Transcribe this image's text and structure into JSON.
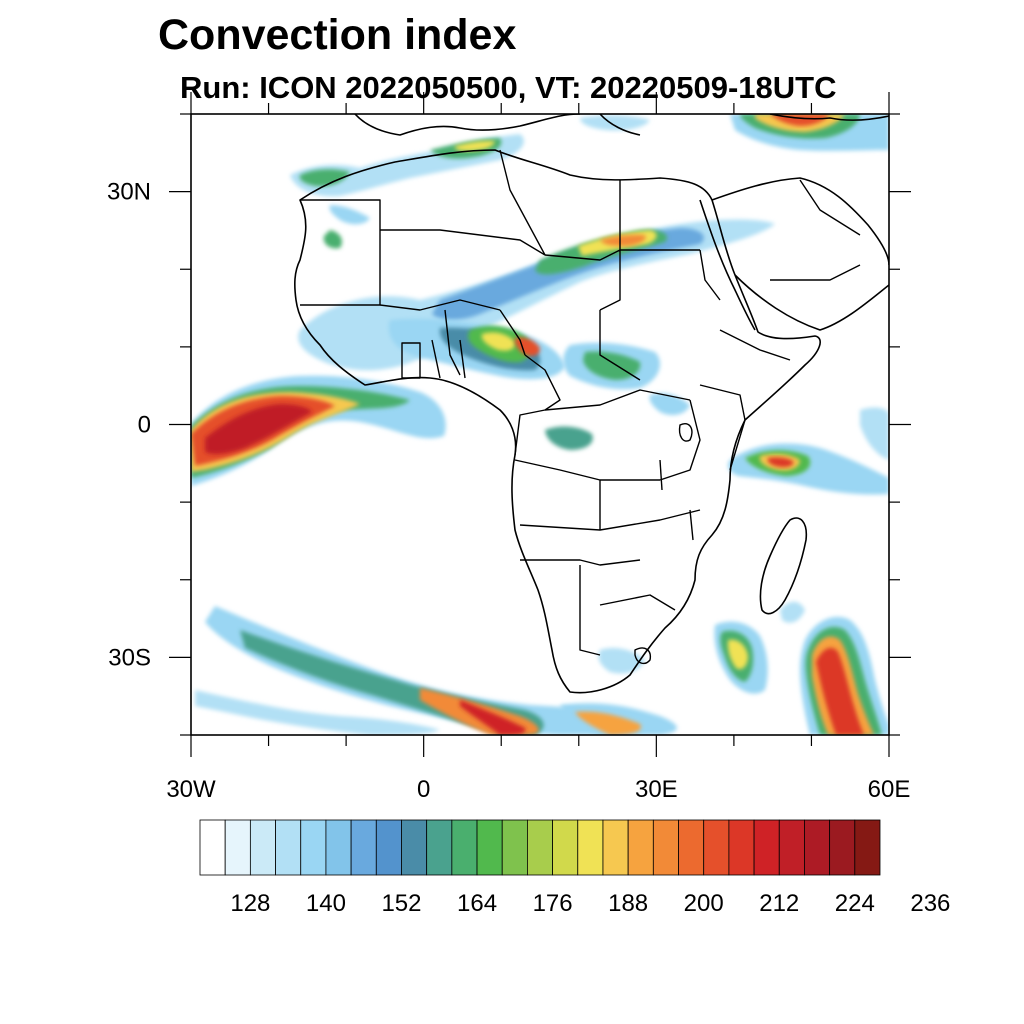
{
  "title": "Convection index",
  "subtitle": "Run: ICON 2022050500,  VT: 20220509-18UTC",
  "map": {
    "lon_range": [
      -30,
      60
    ],
    "lat_range": [
      -40,
      40
    ],
    "y_axis_labels": [
      {
        "lat": 30,
        "text": "30N"
      },
      {
        "lat": 0,
        "text": "0"
      },
      {
        "lat": -30,
        "text": "30S"
      }
    ],
    "x_axis_labels": [
      {
        "lon": -30,
        "text": "30W"
      },
      {
        "lon": 0,
        "text": "0"
      },
      {
        "lon": 30,
        "text": "30E"
      },
      {
        "lon": 60,
        "text": "60E"
      }
    ],
    "minor_tick_step_deg": 10,
    "regions": [
      {
        "name": "equatorial-atlantic-band",
        "lon": -25,
        "lat": 1,
        "level": 23
      },
      {
        "name": "south-atlantic-front",
        "lon": 0,
        "lat": -32,
        "level": 16
      },
      {
        "name": "south-atlantic-front-core",
        "lon": 10,
        "lat": -37,
        "level": 21
      },
      {
        "name": "sahel-north-africa-band",
        "lon": 20,
        "lat": 20,
        "level": 14
      },
      {
        "name": "nigeria-cameroon-cluster",
        "lon": 12,
        "lat": 10,
        "level": 18
      },
      {
        "name": "north-africa-coast",
        "lon": -5,
        "lat": 32,
        "level": 12
      },
      {
        "name": "mediterranean-east",
        "lon": 45,
        "lat": 38,
        "level": 18
      },
      {
        "name": "east-africa-coast-cell",
        "lon": 45,
        "lat": -4,
        "level": 20
      },
      {
        "name": "mozambique-channel-cell",
        "lon": 41,
        "lat": -28,
        "level": 14
      },
      {
        "name": "south-indian-ocean-band",
        "lon": 55,
        "lat": -35,
        "level": 23
      }
    ]
  },
  "colorbar": {
    "colors": [
      "#ffffff",
      "#e6f5fc",
      "#cbeaf7",
      "#b2e0f5",
      "#9ad6f3",
      "#82c4ea",
      "#69a9de",
      "#5393cd",
      "#4a8ca8",
      "#4aa28e",
      "#4aaf6e",
      "#51b94d",
      "#7fc24d",
      "#a8cd4c",
      "#d1d94b",
      "#f0e255",
      "#f6c850",
      "#f6a33f",
      "#f28a37",
      "#ec6a2f",
      "#e5502b",
      "#dc3727",
      "#cf2226",
      "#c01f27",
      "#ad1b25",
      "#9b1a20",
      "#851914"
    ],
    "tick_labels": [
      "128",
      "140",
      "152",
      "164",
      "176",
      "188",
      "200",
      "212",
      "224",
      "236"
    ]
  }
}
